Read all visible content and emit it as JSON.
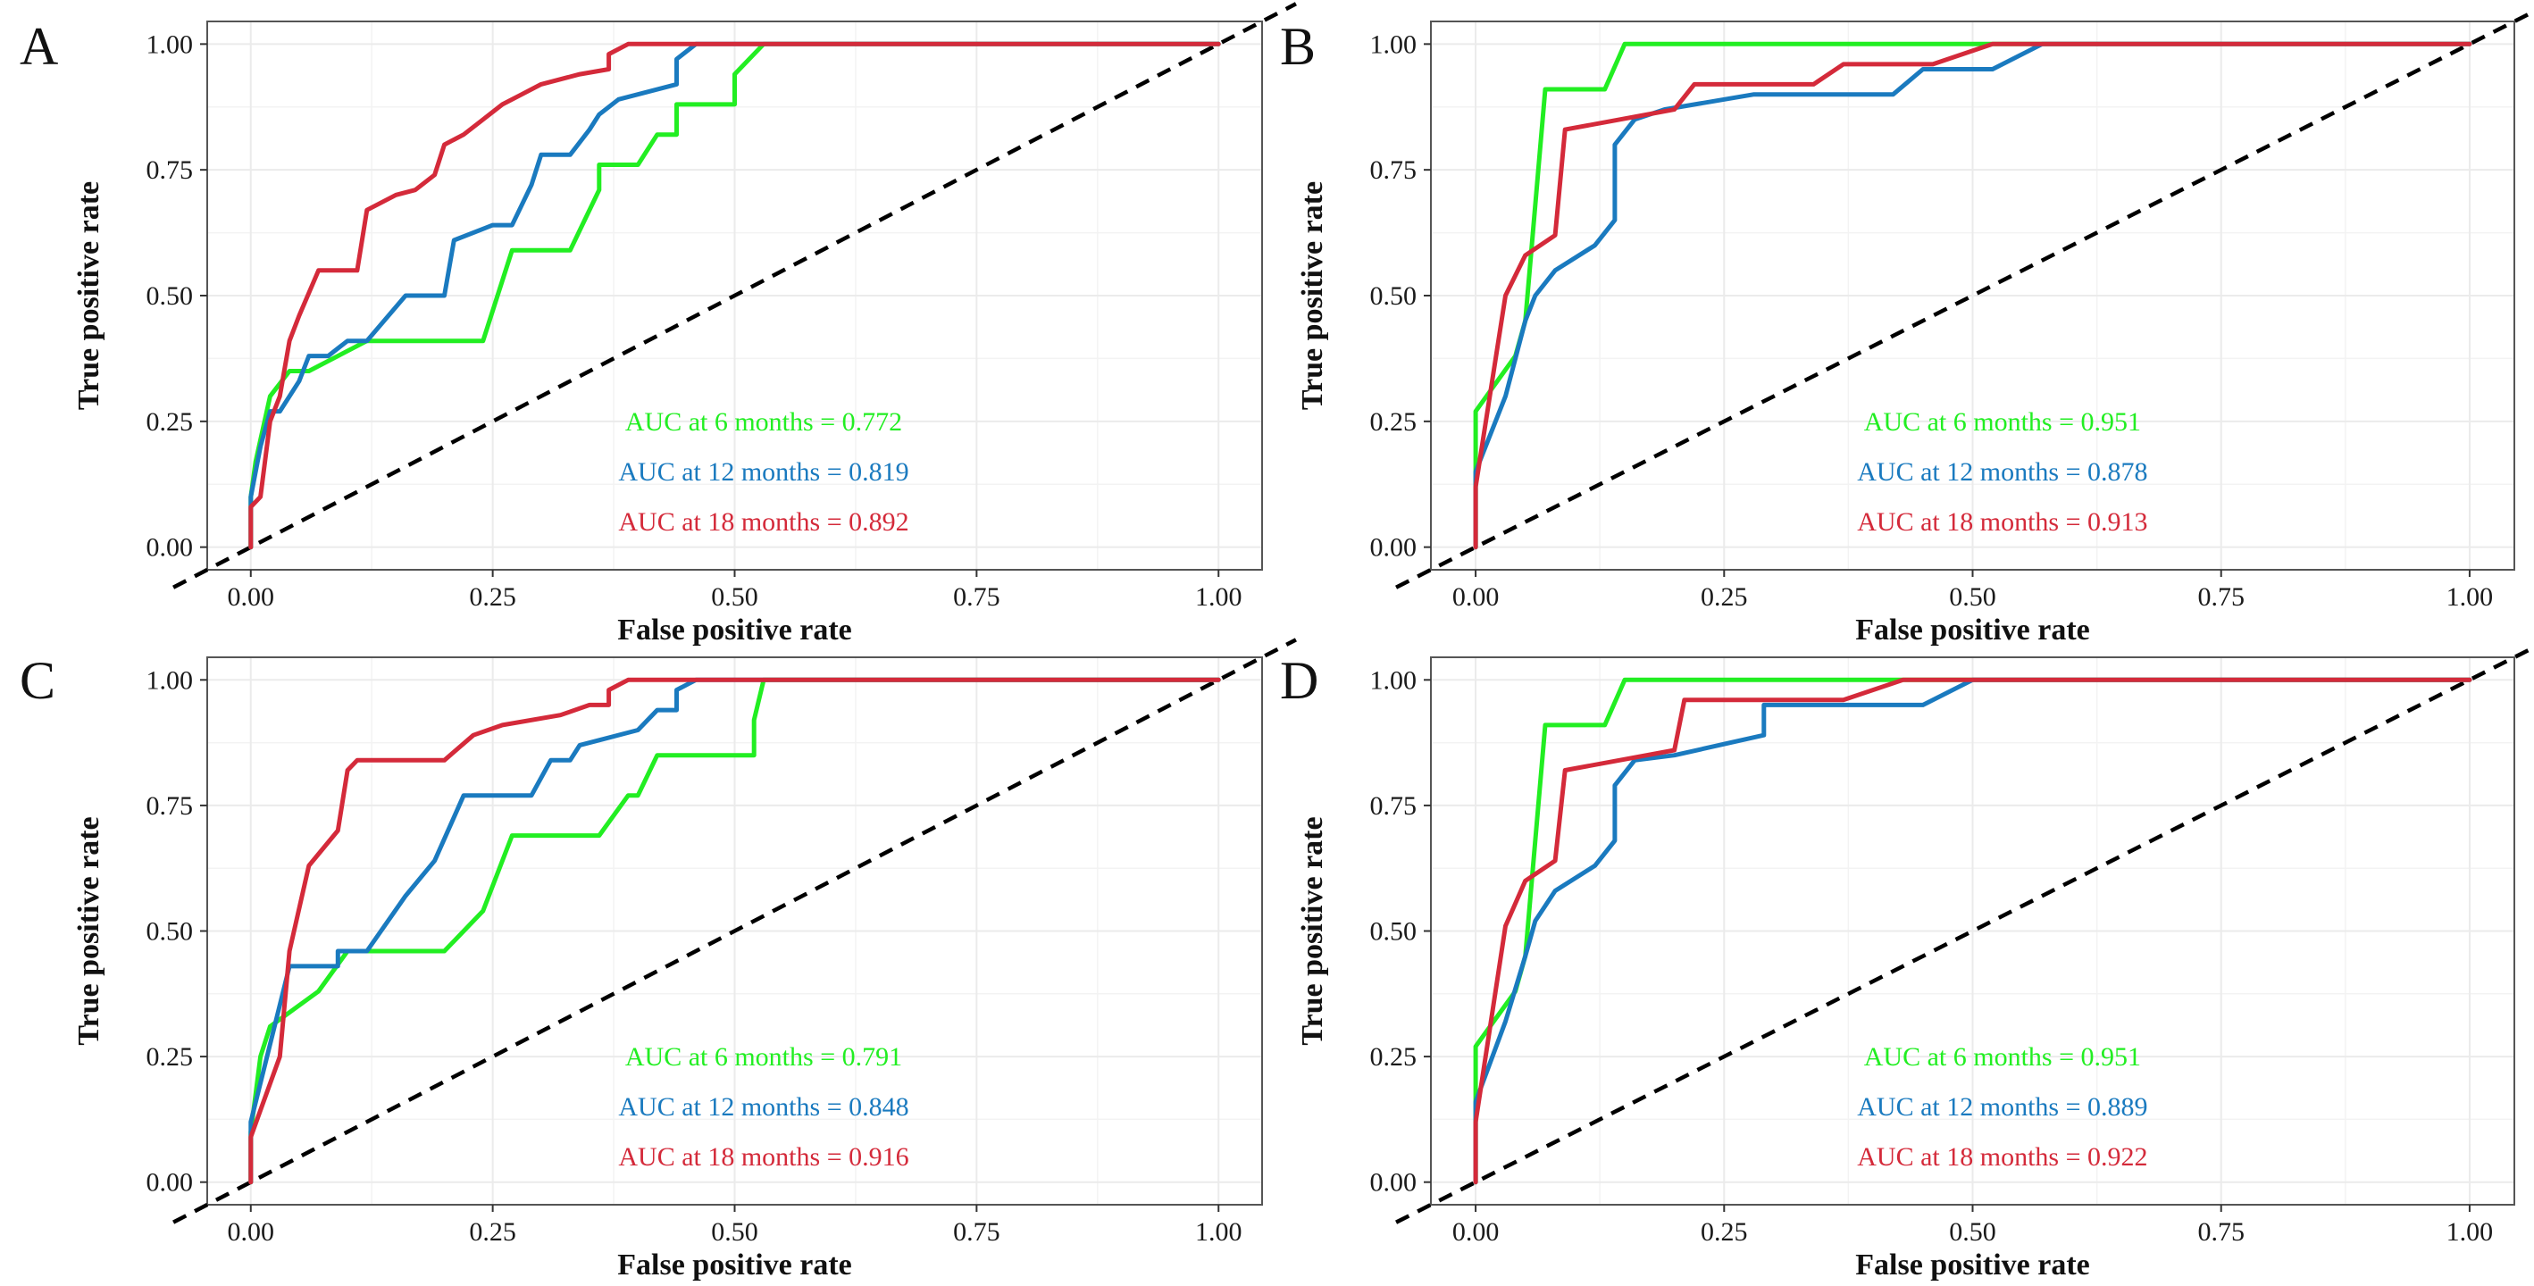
{
  "colors": {
    "6 months": "#22ee22",
    "12 months": "#1a7abf",
    "18 months": "#d42a3a",
    "reference": "#000000",
    "grid": "#ebebeb",
    "frame": "#555555"
  },
  "chart_data": [
    {
      "panel": "A",
      "type": "line",
      "xlabel": "False positive rate",
      "ylabel": "True positive rate",
      "xlim": [
        0,
        1
      ],
      "ylim": [
        0,
        1
      ],
      "xticks": [
        "0.00",
        "0.25",
        "0.50",
        "0.75",
        "1.00"
      ],
      "yticks": [
        "0.00",
        "0.25",
        "0.50",
        "0.75",
        "1.00"
      ],
      "reference_line": "diagonal",
      "series": [
        {
          "name": "6 months",
          "auc_label": "AUC at 6 months = 0.772",
          "x": [
            0,
            0,
            0.005,
            0.02,
            0.04,
            0.06,
            0.12,
            0.24,
            0.27,
            0.33,
            0.36,
            0.36,
            0.4,
            0.42,
            0.44,
            0.44,
            0.5,
            0.5,
            0.53,
            1
          ],
          "y": [
            0,
            0.1,
            0.17,
            0.3,
            0.35,
            0.35,
            0.41,
            0.41,
            0.59,
            0.59,
            0.71,
            0.76,
            0.76,
            0.82,
            0.82,
            0.88,
            0.88,
            0.94,
            1,
            1
          ]
        },
        {
          "name": "12 months",
          "auc_label": "AUC at 12 months = 0.819",
          "x": [
            0,
            0,
            0.01,
            0.02,
            0.03,
            0.05,
            0.06,
            0.08,
            0.1,
            0.12,
            0.16,
            0.2,
            0.21,
            0.25,
            0.27,
            0.29,
            0.3,
            0.32,
            0.33,
            0.35,
            0.36,
            0.38,
            0.44,
            0.44,
            0.46,
            1
          ],
          "y": [
            0,
            0.1,
            0.2,
            0.27,
            0.27,
            0.33,
            0.38,
            0.38,
            0.41,
            0.41,
            0.5,
            0.5,
            0.61,
            0.64,
            0.64,
            0.72,
            0.78,
            0.78,
            0.78,
            0.83,
            0.86,
            0.89,
            0.92,
            0.97,
            1,
            1
          ]
        },
        {
          "name": "18 months",
          "auc_label": "AUC at 18 months = 0.892",
          "x": [
            0,
            0,
            0.01,
            0.02,
            0.03,
            0.04,
            0.05,
            0.07,
            0.11,
            0.12,
            0.15,
            0.17,
            0.19,
            0.2,
            0.22,
            0.24,
            0.26,
            0.28,
            0.3,
            0.34,
            0.37,
            0.37,
            0.39,
            0.42,
            1
          ],
          "y": [
            0,
            0.08,
            0.1,
            0.25,
            0.3,
            0.41,
            0.46,
            0.55,
            0.55,
            0.67,
            0.7,
            0.71,
            0.74,
            0.8,
            0.82,
            0.85,
            0.88,
            0.9,
            0.92,
            0.94,
            0.95,
            0.98,
            1,
            1,
            1
          ]
        }
      ]
    },
    {
      "panel": "B",
      "type": "line",
      "xlabel": "False positive rate",
      "ylabel": "True positive rate",
      "xlim": [
        0,
        1
      ],
      "ylim": [
        0,
        1
      ],
      "xticks": [
        "0.00",
        "0.25",
        "0.50",
        "0.75",
        "1.00"
      ],
      "yticks": [
        "0.00",
        "0.25",
        "0.50",
        "0.75",
        "1.00"
      ],
      "reference_line": "diagonal",
      "series": [
        {
          "name": "6 months",
          "auc_label": "AUC at 6 months = 0.951",
          "x": [
            0,
            0,
            0.04,
            0.05,
            0.07,
            0.13,
            0.15,
            0.52,
            1
          ],
          "y": [
            0,
            0.27,
            0.38,
            0.45,
            0.91,
            0.91,
            1,
            1,
            1
          ]
        },
        {
          "name": "12 months",
          "auc_label": "AUC at 12 months = 0.878",
          "x": [
            0,
            0,
            0.03,
            0.05,
            0.06,
            0.08,
            0.12,
            0.14,
            0.14,
            0.16,
            0.19,
            0.28,
            0.42,
            0.45,
            0.52,
            0.57,
            1
          ],
          "y": [
            0,
            0.15,
            0.3,
            0.45,
            0.5,
            0.55,
            0.6,
            0.65,
            0.8,
            0.85,
            0.87,
            0.9,
            0.9,
            0.95,
            0.95,
            1,
            1
          ]
        },
        {
          "name": "18 months",
          "auc_label": "AUC at 18 months = 0.913",
          "x": [
            0,
            0,
            0.03,
            0.05,
            0.08,
            0.09,
            0.2,
            0.22,
            0.34,
            0.37,
            0.46,
            0.52,
            1
          ],
          "y": [
            0,
            0.12,
            0.5,
            0.58,
            0.62,
            0.83,
            0.87,
            0.92,
            0.92,
            0.96,
            0.96,
            1,
            1
          ]
        }
      ]
    },
    {
      "panel": "C",
      "type": "line",
      "xlabel": "False positive rate",
      "ylabel": "True positive rate",
      "xlim": [
        0,
        1
      ],
      "ylim": [
        0,
        1
      ],
      "xticks": [
        "0.00",
        "0.25",
        "0.50",
        "0.75",
        "1.00"
      ],
      "yticks": [
        "0.00",
        "0.25",
        "0.50",
        "0.75",
        "1.00"
      ],
      "reference_line": "diagonal",
      "series": [
        {
          "name": "6 months",
          "auc_label": "AUC at 6 months = 0.791",
          "x": [
            0,
            0,
            0.01,
            0.02,
            0.07,
            0.1,
            0.2,
            0.24,
            0.27,
            0.36,
            0.39,
            0.4,
            0.42,
            0.52,
            0.52,
            0.53,
            1
          ],
          "y": [
            0,
            0.1,
            0.25,
            0.31,
            0.38,
            0.46,
            0.46,
            0.54,
            0.69,
            0.69,
            0.77,
            0.77,
            0.85,
            0.85,
            0.92,
            1,
            1
          ]
        },
        {
          "name": "12 months",
          "auc_label": "AUC at 12 months = 0.848",
          "x": [
            0,
            0,
            0.04,
            0.09,
            0.09,
            0.12,
            0.16,
            0.19,
            0.22,
            0.29,
            0.31,
            0.33,
            0.34,
            0.36,
            0.4,
            0.42,
            0.44,
            0.44,
            0.46,
            1
          ],
          "y": [
            0,
            0.12,
            0.43,
            0.43,
            0.46,
            0.46,
            0.57,
            0.64,
            0.77,
            0.77,
            0.84,
            0.84,
            0.87,
            0.88,
            0.9,
            0.94,
            0.94,
            0.98,
            1,
            1
          ]
        },
        {
          "name": "18 months",
          "auc_label": "AUC at 18 months = 0.916",
          "x": [
            0,
            0,
            0.03,
            0.04,
            0.06,
            0.09,
            0.1,
            0.11,
            0.2,
            0.23,
            0.26,
            0.32,
            0.35,
            0.37,
            0.37,
            0.39,
            1
          ],
          "y": [
            0,
            0.09,
            0.25,
            0.46,
            0.63,
            0.7,
            0.82,
            0.84,
            0.84,
            0.89,
            0.91,
            0.93,
            0.95,
            0.95,
            0.98,
            1,
            1
          ]
        }
      ]
    },
    {
      "panel": "D",
      "type": "line",
      "xlabel": "False positive rate",
      "ylabel": "True positive rate",
      "xlim": [
        0,
        1
      ],
      "ylim": [
        0,
        1
      ],
      "xticks": [
        "0.00",
        "0.25",
        "0.50",
        "0.75",
        "1.00"
      ],
      "yticks": [
        "0.00",
        "0.25",
        "0.50",
        "0.75",
        "1.00"
      ],
      "reference_line": "diagonal",
      "series": [
        {
          "name": "6 months",
          "auc_label": "AUC at 6 months = 0.951",
          "x": [
            0,
            0,
            0.04,
            0.05,
            0.07,
            0.13,
            0.15,
            0.43,
            1
          ],
          "y": [
            0,
            0.27,
            0.38,
            0.45,
            0.91,
            0.91,
            1,
            1,
            1
          ]
        },
        {
          "name": "12 months",
          "auc_label": "AUC at 12 months = 0.889",
          "x": [
            0,
            0,
            0.03,
            0.05,
            0.06,
            0.08,
            0.12,
            0.14,
            0.14,
            0.16,
            0.2,
            0.29,
            0.29,
            0.45,
            0.5,
            1
          ],
          "y": [
            0,
            0.16,
            0.32,
            0.45,
            0.52,
            0.58,
            0.63,
            0.68,
            0.79,
            0.84,
            0.85,
            0.89,
            0.95,
            0.95,
            1,
            1
          ]
        },
        {
          "name": "18 months",
          "auc_label": "AUC at 18 months = 0.922",
          "x": [
            0,
            0,
            0.03,
            0.05,
            0.08,
            0.09,
            0.2,
            0.21,
            0.37,
            0.43,
            1
          ],
          "y": [
            0,
            0.12,
            0.51,
            0.6,
            0.64,
            0.82,
            0.86,
            0.96,
            0.96,
            1,
            1
          ]
        }
      ]
    }
  ]
}
